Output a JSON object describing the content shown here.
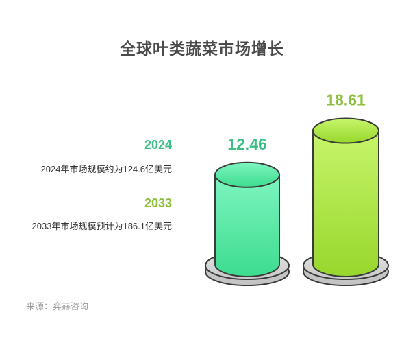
{
  "title": "全球叶类蔬菜市场增长",
  "legend": [
    {
      "year": "2024",
      "desc": "2024年市场规模约为124.6亿美元",
      "color": "#3cbf84"
    },
    {
      "year": "2033",
      "desc": "2033年市场规模预计为186.1亿美元",
      "color": "#8cbf3c"
    }
  ],
  "source": "来源：弈赫咨询",
  "chart_data": {
    "type": "bar",
    "title": "全球叶类蔬菜市场增长",
    "categories": [
      "2024",
      "2033"
    ],
    "values": [
      12.46,
      18.61
    ],
    "value_labels": [
      "12.46",
      "18.61"
    ],
    "colors": [
      "#3cbf84",
      "#8cbf3c"
    ]
  }
}
